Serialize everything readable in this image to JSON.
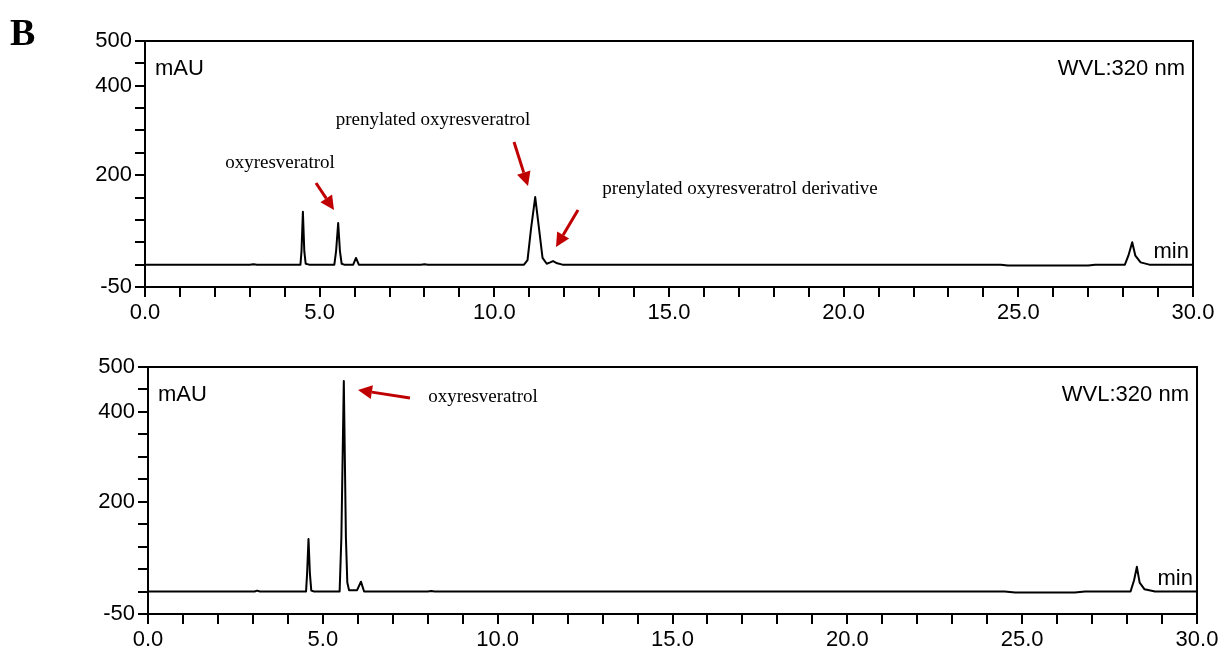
{
  "chart_data": [
    {
      "type": "line",
      "title": "B",
      "xlabel": "min",
      "ylabel": "mAU",
      "marker": "none",
      "line_style": "solid",
      "xlim": [
        0,
        30
      ],
      "ylim": [
        -50,
        500
      ],
      "xticks": [
        {
          "value": 0,
          "label": "0.0"
        },
        {
          "value": 1,
          "label": null
        },
        {
          "value": 2,
          "label": null
        },
        {
          "value": 3,
          "label": null
        },
        {
          "value": 4,
          "label": null
        },
        {
          "value": 5,
          "label": "5.0"
        },
        {
          "value": 6,
          "label": null
        },
        {
          "value": 7,
          "label": null
        },
        {
          "value": 8,
          "label": null
        },
        {
          "value": 9,
          "label": null
        },
        {
          "value": 10,
          "label": "10.0"
        },
        {
          "value": 11,
          "label": null
        },
        {
          "value": 12,
          "label": null
        },
        {
          "value": 13,
          "label": null
        },
        {
          "value": 14,
          "label": null
        },
        {
          "value": 15,
          "label": "15.0"
        },
        {
          "value": 16,
          "label": null
        },
        {
          "value": 17,
          "label": null
        },
        {
          "value": 18,
          "label": null
        },
        {
          "value": 19,
          "label": null
        },
        {
          "value": 20,
          "label": "20.0"
        },
        {
          "value": 21,
          "label": null
        },
        {
          "value": 22,
          "label": null
        },
        {
          "value": 23,
          "label": null
        },
        {
          "value": 24,
          "label": null
        },
        {
          "value": 25,
          "label": "25.0"
        },
        {
          "value": 26,
          "label": null
        },
        {
          "value": 27,
          "label": null
        },
        {
          "value": 28,
          "label": null
        },
        {
          "value": 29,
          "label": null
        },
        {
          "value": 30,
          "label": "30.0"
        }
      ],
      "yticks": [
        -50,
        {
          "value": 0,
          "label": null
        },
        {
          "value": 50,
          "label": null
        },
        {
          "value": 100,
          "label": null
        },
        {
          "value": 150,
          "label": null
        },
        200,
        {
          "value": 250,
          "label": null
        },
        {
          "value": 300,
          "label": null
        },
        {
          "value": 350,
          "label": null
        },
        400,
        {
          "value": 450,
          "label": null
        },
        500
      ],
      "series": [
        {
          "color": "#000000",
          "x": [
            0,
            3.0,
            3.1,
            3.2,
            4.45,
            4.48,
            4.52,
            4.56,
            4.6,
            4.7,
            5.42,
            5.47,
            5.53,
            5.58,
            5.63,
            5.7,
            5.96,
            6.04,
            6.12,
            7.9,
            8.0,
            8.1,
            10.85,
            10.95,
            11.05,
            11.17,
            11.28,
            11.38,
            11.5,
            11.6,
            11.68,
            11.8,
            11.95,
            24.5,
            24.7,
            27.0,
            27.2,
            28.05,
            28.15,
            28.26,
            28.35,
            28.5,
            28.75,
            30
          ],
          "values": [
            0,
            0,
            1,
            0,
            0,
            30,
            118,
            30,
            2,
            0,
            0,
            30,
            93,
            30,
            2,
            0,
            0,
            15,
            0,
            0,
            1,
            0,
            0,
            10,
            80,
            151,
            80,
            15,
            2,
            5,
            8,
            3,
            0,
            0,
            -2,
            -2,
            0,
            0,
            20,
            50,
            20,
            5,
            0,
            0
          ]
        }
      ],
      "annotations": [
        "oxyresveratrol",
        "prenylated oxyresveratrol",
        "prenylated oxyresveratrol derivative",
        "WVL:320 nm"
      ]
    },
    {
      "type": "line",
      "xlabel": "min",
      "ylabel": "mAU",
      "marker": "none",
      "line_style": "solid",
      "xlim": [
        0,
        30
      ],
      "ylim": [
        -50,
        500
      ],
      "xticks": [
        {
          "value": 0,
          "label": "0.0"
        },
        {
          "value": 1,
          "label": null
        },
        {
          "value": 2,
          "label": null
        },
        {
          "value": 3,
          "label": null
        },
        {
          "value": 4,
          "label": null
        },
        {
          "value": 5,
          "label": "5.0"
        },
        {
          "value": 6,
          "label": null
        },
        {
          "value": 7,
          "label": null
        },
        {
          "value": 8,
          "label": null
        },
        {
          "value": 9,
          "label": null
        },
        {
          "value": 10,
          "label": "10.0"
        },
        {
          "value": 11,
          "label": null
        },
        {
          "value": 12,
          "label": null
        },
        {
          "value": 13,
          "label": null
        },
        {
          "value": 14,
          "label": null
        },
        {
          "value": 15,
          "label": "15.0"
        },
        {
          "value": 16,
          "label": null
        },
        {
          "value": 17,
          "label": null
        },
        {
          "value": 18,
          "label": null
        },
        {
          "value": 19,
          "label": null
        },
        {
          "value": 20,
          "label": "20.0"
        },
        {
          "value": 21,
          "label": null
        },
        {
          "value": 22,
          "label": null
        },
        {
          "value": 23,
          "label": null
        },
        {
          "value": 24,
          "label": null
        },
        {
          "value": 25,
          "label": "25.0"
        },
        {
          "value": 26,
          "label": null
        },
        {
          "value": 27,
          "label": null
        },
        {
          "value": 28,
          "label": null
        },
        {
          "value": 29,
          "label": null
        },
        {
          "value": 30,
          "label": "30.0"
        }
      ],
      "yticks": [
        -50,
        {
          "value": 0,
          "label": null
        },
        {
          "value": 50,
          "label": null
        },
        {
          "value": 100,
          "label": null
        },
        {
          "value": 150,
          "label": null
        },
        200,
        {
          "value": 250,
          "label": null
        },
        {
          "value": 300,
          "label": null
        },
        {
          "value": 350,
          "label": null
        },
        400,
        {
          "value": 450,
          "label": null
        },
        500
      ],
      "series": [
        {
          "color": "#000000",
          "x": [
            0,
            3.05,
            3.12,
            3.2,
            4.52,
            4.55,
            4.59,
            4.63,
            4.67,
            4.75,
            5.48,
            5.53,
            5.6,
            5.66,
            5.7,
            5.75,
            5.98,
            6.09,
            6.18,
            8.0,
            8.1,
            8.2,
            24.5,
            24.8,
            26.5,
            26.8,
            28.1,
            28.2,
            28.28,
            28.36,
            28.5,
            28.8,
            30
          ],
          "values": [
            0,
            0,
            2,
            0,
            0,
            40,
            117,
            40,
            2,
            0,
            0,
            120,
            469,
            120,
            20,
            3,
            3,
            22,
            0,
            0,
            1,
            0,
            0,
            -2,
            -2,
            0,
            0,
            25,
            55,
            20,
            5,
            0,
            0
          ]
        }
      ],
      "annotations": [
        "oxyresveratrol",
        "WVL:320 nm"
      ]
    }
  ]
}
